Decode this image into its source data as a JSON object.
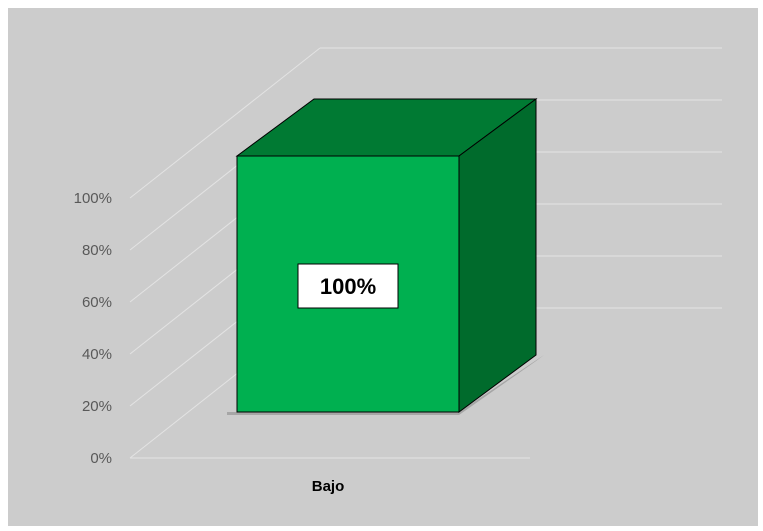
{
  "chart_data": {
    "type": "bar",
    "style": "3d-column",
    "categories": [
      "Bajo"
    ],
    "values": [
      100
    ],
    "data_labels": [
      "100%"
    ],
    "y_ticks": [
      "0%",
      "20%",
      "40%",
      "60%",
      "80%",
      "100%"
    ],
    "ylim": [
      0,
      100
    ],
    "grid": true,
    "legend": "none",
    "colors": {
      "plot_background": "#cccccc",
      "bar_front": "#00b050",
      "bar_top": "#007a33",
      "bar_side": "#006b2c",
      "gridline": "#e3e3e3",
      "tick_label": "#595959",
      "category_label": "#000000"
    }
  }
}
